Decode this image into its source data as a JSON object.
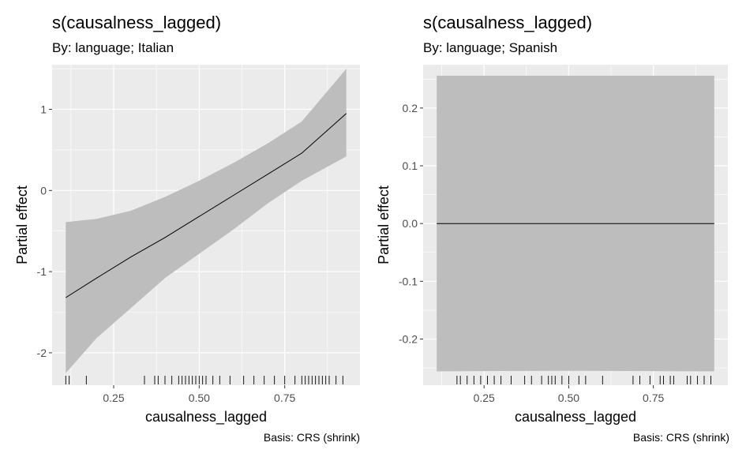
{
  "chart_data": [
    {
      "type": "line",
      "title": "s(causalness_lagged)",
      "subtitle": "By: language; Italian",
      "xlabel": "causalness_lagged",
      "ylabel": "Partial effect",
      "caption": "Basis: CRS (shrink)",
      "xlim": [
        0.07,
        0.97
      ],
      "ylim": [
        -2.4,
        1.55
      ],
      "xticks": [
        0.25,
        0.5,
        0.75
      ],
      "xtick_labels": [
        "0.25",
        "0.50",
        "0.75"
      ],
      "yticks": [
        -2,
        -1,
        0,
        1
      ],
      "ytick_labels": [
        "-2",
        "-1",
        "0",
        "1"
      ],
      "grid": true,
      "colors": {
        "panel": "#ebebeb",
        "grid": "#ffffff",
        "ribbon": "#bdbdbd",
        "line": "#000000"
      },
      "series": [
        {
          "x": [
            0.11,
            0.2,
            0.3,
            0.4,
            0.5,
            0.6,
            0.7,
            0.8,
            0.93
          ],
          "y": [
            -1.32,
            -1.08,
            -0.82,
            -0.58,
            -0.32,
            -0.06,
            0.2,
            0.46,
            0.95
          ],
          "lower": [
            -2.25,
            -1.82,
            -1.45,
            -1.08,
            -0.78,
            -0.48,
            -0.16,
            0.12,
            0.42
          ],
          "upper": [
            -0.39,
            -0.35,
            -0.25,
            -0.08,
            0.12,
            0.34,
            0.58,
            0.85,
            1.5
          ]
        }
      ],
      "rug": [
        0.11,
        0.12,
        0.17,
        0.34,
        0.37,
        0.38,
        0.4,
        0.42,
        0.44,
        0.45,
        0.46,
        0.47,
        0.48,
        0.49,
        0.5,
        0.51,
        0.52,
        0.54,
        0.56,
        0.59,
        0.63,
        0.66,
        0.69,
        0.72,
        0.75,
        0.78,
        0.8,
        0.81,
        0.82,
        0.83,
        0.84,
        0.85,
        0.86,
        0.87,
        0.88,
        0.9,
        0.92
      ]
    },
    {
      "type": "line",
      "title": "s(causalness_lagged)",
      "subtitle": "By: language; Spanish",
      "xlabel": "causalness_lagged",
      "ylabel": "Partial effect",
      "caption": "Basis: CRS (shrink)",
      "xlim": [
        0.07,
        0.97
      ],
      "ylim": [
        -0.28,
        0.275
      ],
      "xticks": [
        0.25,
        0.5,
        0.75
      ],
      "xtick_labels": [
        "0.25",
        "0.50",
        "0.75"
      ],
      "yticks": [
        -0.2,
        -0.1,
        0.0,
        0.1,
        0.2
      ],
      "ytick_labels": [
        "-0.2",
        "-0.1",
        "0.0",
        "0.1",
        "0.2"
      ],
      "grid": true,
      "colors": {
        "panel": "#ebebeb",
        "grid": "#ffffff",
        "ribbon": "#bdbdbd",
        "line": "#000000"
      },
      "series": [
        {
          "x": [
            0.11,
            0.5,
            0.93
          ],
          "y": [
            0.0,
            0.0,
            0.0
          ],
          "lower": [
            -0.256,
            -0.255,
            -0.256
          ],
          "upper": [
            0.256,
            0.256,
            0.256
          ]
        }
      ],
      "rug": [
        0.17,
        0.18,
        0.2,
        0.22,
        0.24,
        0.26,
        0.28,
        0.3,
        0.33,
        0.37,
        0.39,
        0.42,
        0.44,
        0.45,
        0.46,
        0.48,
        0.5,
        0.53,
        0.55,
        0.6,
        0.69,
        0.71,
        0.74,
        0.77,
        0.78,
        0.8,
        0.81,
        0.85,
        0.86,
        0.88,
        0.9,
        0.92
      ]
    }
  ]
}
